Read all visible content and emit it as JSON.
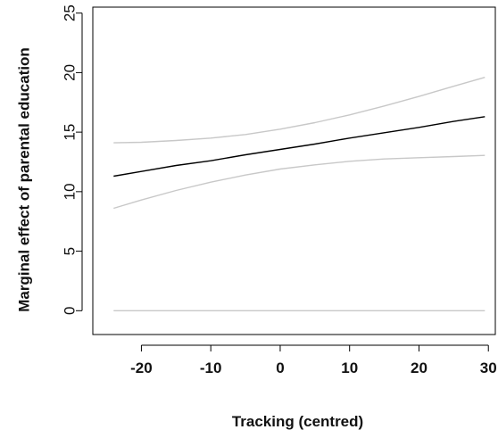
{
  "chart_data": {
    "type": "line",
    "xlabel": "Tracking (centred)",
    "ylabel": "Marginal effect of parental education",
    "xlim": [
      -27,
      31
    ],
    "ylim": [
      -2,
      25.5
    ],
    "x_ticks": [
      -20,
      -10,
      0,
      10,
      20,
      30
    ],
    "x_tick_labels": [
      "-20",
      "-10",
      "0",
      "10",
      "20",
      "30"
    ],
    "y_ticks": [
      0,
      5,
      10,
      15,
      20,
      25
    ],
    "y_tick_labels": [
      "0",
      "5",
      "10",
      "15",
      "20",
      "25"
    ],
    "grid": false,
    "legend": "none",
    "series": [
      {
        "role": "estimate",
        "color": "#000000",
        "x": [
          -24,
          -20,
          -15,
          -10,
          -5,
          0,
          5,
          10,
          15,
          20,
          25,
          29.5
        ],
        "y": [
          11.3,
          11.7,
          12.2,
          12.6,
          13.1,
          13.55,
          14.0,
          14.5,
          14.95,
          15.4,
          15.9,
          16.3
        ]
      },
      {
        "role": "upper-bound",
        "color": "#c8c8c8",
        "x": [
          -24,
          -20,
          -15,
          -10,
          -5,
          0,
          5,
          10,
          15,
          20,
          25,
          29.5
        ],
        "y": [
          14.1,
          14.15,
          14.3,
          14.5,
          14.8,
          15.25,
          15.8,
          16.45,
          17.2,
          18.0,
          18.85,
          19.6
        ]
      },
      {
        "role": "lower-bound",
        "color": "#c8c8c8",
        "x": [
          -24,
          -20,
          -15,
          -10,
          -5,
          0,
          5,
          10,
          15,
          20,
          25,
          29.5
        ],
        "y": [
          8.6,
          9.3,
          10.1,
          10.8,
          11.4,
          11.9,
          12.25,
          12.55,
          12.75,
          12.85,
          12.95,
          13.05
        ]
      },
      {
        "role": "zero-reference",
        "color": "#c8c8c8",
        "x": [
          -24,
          29.5
        ],
        "y": [
          0,
          0
        ]
      }
    ]
  }
}
